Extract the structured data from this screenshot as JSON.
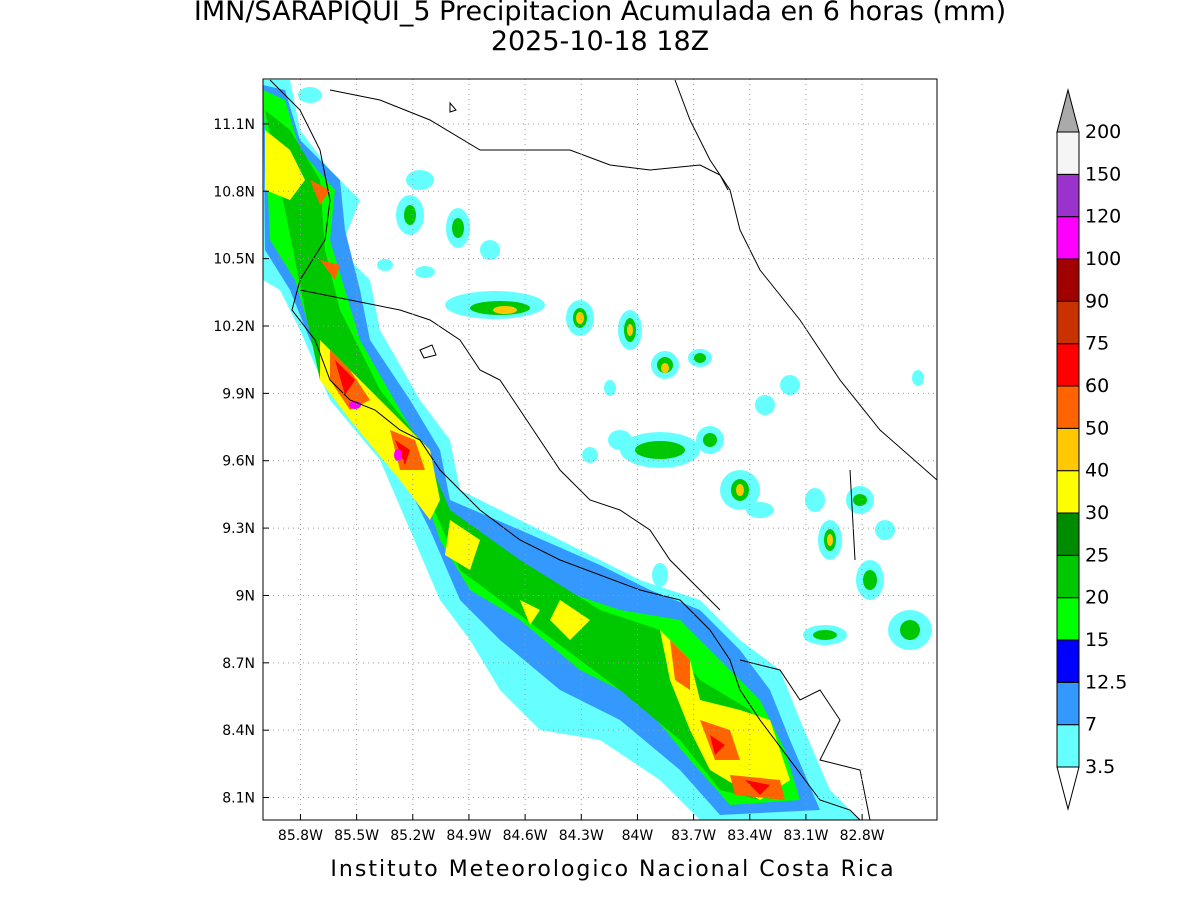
{
  "title": "IMN/SARAPIQUI_5 Precipitacion Acumulada en 6 horas (mm)",
  "subtitle": "2025-10-18 18Z",
  "footer": "Instituto Meteorologico Nacional Costa Rica",
  "map": {
    "lonlim": [
      -86.0,
      -82.4
    ],
    "latlim": [
      8.0,
      11.3
    ],
    "lonticks": [
      {
        "value": -85.8,
        "label": "85.8W"
      },
      {
        "value": -85.5,
        "label": "85.5W"
      },
      {
        "value": -85.2,
        "label": "85.2W"
      },
      {
        "value": -84.9,
        "label": "84.9W"
      },
      {
        "value": -84.6,
        "label": "84.6W"
      },
      {
        "value": -84.3,
        "label": "84.3W"
      },
      {
        "value": -84.0,
        "label": "84W"
      },
      {
        "value": -83.7,
        "label": "83.7W"
      },
      {
        "value": -83.4,
        "label": "83.4W"
      },
      {
        "value": -83.1,
        "label": "83.1W"
      },
      {
        "value": -82.8,
        "label": "82.8W"
      }
    ],
    "latticks": [
      {
        "value": 8.1,
        "label": "8.1N"
      },
      {
        "value": 8.4,
        "label": "8.4N"
      },
      {
        "value": 8.7,
        "label": "8.7N"
      },
      {
        "value": 9.0,
        "label": "9N"
      },
      {
        "value": 9.3,
        "label": "9.3N"
      },
      {
        "value": 9.6,
        "label": "9.6N"
      },
      {
        "value": 9.9,
        "label": "9.9N"
      },
      {
        "value": 10.2,
        "label": "10.2N"
      },
      {
        "value": 10.5,
        "label": "10.5N"
      },
      {
        "value": 10.8,
        "label": "10.8N"
      },
      {
        "value": 11.1,
        "label": "11.1N"
      }
    ]
  },
  "colorbar": {
    "labels": [
      3.5,
      7,
      12.5,
      15,
      20,
      25,
      30,
      40,
      50,
      60,
      75,
      90,
      100,
      120,
      150,
      200
    ],
    "colors": [
      "#66ffff",
      "#3399ff",
      "#0000ff",
      "#00ff00",
      "#00c800",
      "#008c00",
      "#ffff00",
      "#ffc800",
      "#ff6400",
      "#ff0000",
      "#c83200",
      "#a00000",
      "#ff00ff",
      "#9933cc",
      "#f5f5f5"
    ],
    "under_color": "#ffffff",
    "over_color": "#aaaaaa"
  }
}
